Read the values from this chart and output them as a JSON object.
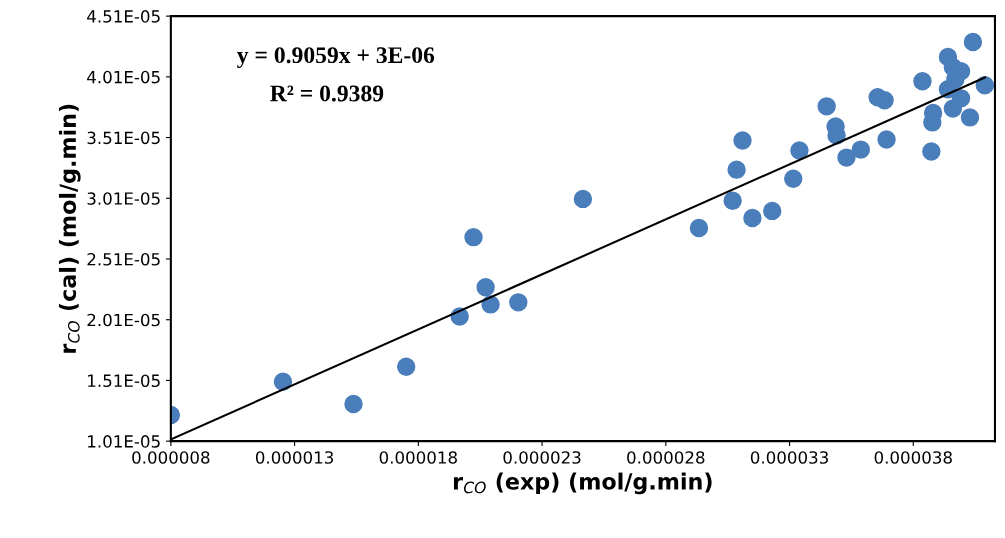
{
  "chart_data": {
    "type": "scatter",
    "xlabel": "r$_{CO}$ (exp) (mol/g.min)",
    "ylabel": "r$_{CO}$ (cal) (mol/g.min)",
    "annotations": [
      "y = 0.9059x + 3E-06",
      "R² = 0.9389"
    ],
    "xlim": [
      8e-06,
      4.13e-05
    ],
    "ylim": [
      1.01e-05,
      4.51e-05
    ],
    "xticks": [
      {
        "value": 8e-06,
        "label": "0.000008"
      },
      {
        "value": 1.3e-05,
        "label": "0.000013"
      },
      {
        "value": 1.8e-05,
        "label": "0.000018"
      },
      {
        "value": 2.3e-05,
        "label": "0.000023"
      },
      {
        "value": 2.8e-05,
        "label": "0.000028"
      },
      {
        "value": 3.3e-05,
        "label": "0.000033"
      },
      {
        "value": 3.8e-05,
        "label": "0.000038"
      }
    ],
    "yticks": [
      {
        "value": 1.01e-05,
        "label": "1.01E-05"
      },
      {
        "value": 1.51e-05,
        "label": "1.51E-05"
      },
      {
        "value": 2.01e-05,
        "label": "2.01E-05"
      },
      {
        "value": 2.51e-05,
        "label": "2.51E-05"
      },
      {
        "value": 3.01e-05,
        "label": "3.01E-05"
      },
      {
        "value": 3.51e-05,
        "label": "3.51E-05"
      },
      {
        "value": 4.01e-05,
        "label": "4.01E-05"
      },
      {
        "value": 4.51e-05,
        "label": "4.51E-05"
      }
    ],
    "grid": false,
    "legend": false,
    "marker": "circle",
    "series": [
      {
        "color": "#4a7ebb",
        "x": [
          8e-06,
          1.253e-05,
          1.538e-05,
          1.751e-05,
          1.967e-05,
          2.023e-05,
          2.072e-05,
          2.092e-05,
          2.204e-05,
          2.465e-05,
          2.934e-05,
          3.07e-05,
          3.086e-05,
          3.11e-05,
          3.15e-05,
          3.23e-05,
          3.315e-05,
          3.34e-05,
          3.45e-05,
          3.486e-05,
          3.49e-05,
          3.53e-05,
          3.588e-05,
          3.656e-05,
          3.684e-05,
          3.692e-05,
          3.837e-05,
          3.88e-05,
          3.877e-05,
          3.873e-05,
          3.94e-05,
          3.94e-05,
          3.96e-05,
          3.96e-05,
          3.993e-05,
          3.97e-05,
          3.993e-05,
          4.029e-05,
          4.041e-05,
          4.089e-05
        ],
        "values": [
          1.225e-05,
          1.499e-05,
          1.316e-05,
          1.623e-05,
          2.037e-05,
          2.69e-05,
          2.277e-05,
          2.136e-05,
          2.153e-05,
          3.005e-05,
          2.765e-05,
          2.99e-05,
          3.246e-05,
          3.486e-05,
          2.848e-05,
          2.906e-05,
          3.171e-05,
          3.403e-05,
          3.767e-05,
          3.602e-05,
          3.527e-05,
          3.345e-05,
          3.411e-05,
          3.842e-05,
          3.817e-05,
          3.494e-05,
          3.974e-05,
          3.713e-05,
          3.635e-05,
          3.395e-05,
          4.173e-05,
          3.908e-05,
          3.75e-05,
          4.09e-05,
          4.057e-05,
          3.99e-05,
          3.833e-05,
          3.676e-05,
          4.297e-05,
          3.941e-05
        ]
      },
      {
        "type": "line",
        "color": "#000000",
        "marker": "none",
        "line_style": "solid",
        "x": [
          8e-06,
          4.09e-05
        ],
        "values": [
          1.0247e-05,
          4.005e-05
        ]
      }
    ]
  }
}
